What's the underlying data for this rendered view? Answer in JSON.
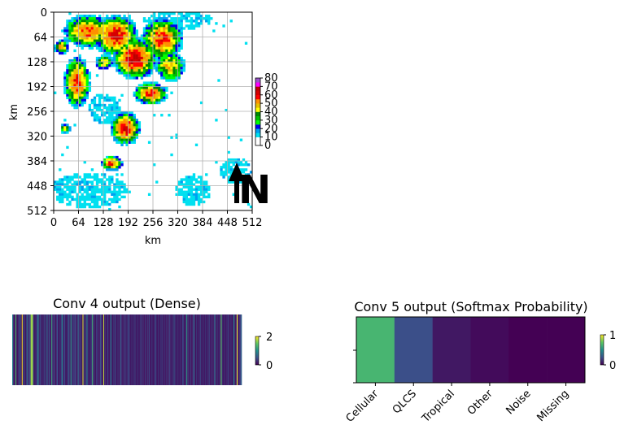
{
  "chart_data": [
    {
      "type": "heatmap",
      "panel": "radar",
      "title": "",
      "xlabel": "km",
      "ylabel": "km",
      "xlim": [
        0,
        512
      ],
      "ylim": [
        512,
        0
      ],
      "x_ticks": [
        "0",
        "64",
        "128",
        "192",
        "256",
        "320",
        "384",
        "448",
        "512"
      ],
      "y_ticks": [
        "0",
        "64",
        "128",
        "192",
        "256",
        "320",
        "384",
        "448",
        "512"
      ],
      "grid": true,
      "colorbar": {
        "ticks": [
          "80",
          "70",
          "60",
          "50",
          "40",
          "30",
          "20",
          "10",
          "0"
        ],
        "levels": [
          0,
          10,
          15,
          20,
          25,
          30,
          35,
          40,
          45,
          50,
          55,
          60,
          65,
          70,
          75,
          80
        ],
        "colors": [
          "#ffffff",
          "#00e0f0",
          "#00a0f0",
          "#0000f0",
          "#00ff00",
          "#00c000",
          "#008800",
          "#ffff00",
          "#e8c000",
          "#ff9000",
          "#ff0000",
          "#d40000",
          "#bc0000",
          "#ff00ff",
          "#9955c9",
          "#000000"
        ]
      },
      "annotation": "N",
      "blobs": [
        {
          "cx": 30,
          "cy": 300,
          "rx": 14,
          "ry": 12,
          "peak": 40
        },
        {
          "cx": 60,
          "cy": 180,
          "rx": 35,
          "ry": 70,
          "peak": 52
        },
        {
          "cx": 90,
          "cy": 50,
          "rx": 70,
          "ry": 45,
          "peak": 48
        },
        {
          "cx": 160,
          "cy": 60,
          "rx": 60,
          "ry": 55,
          "peak": 55
        },
        {
          "cx": 210,
          "cy": 120,
          "rx": 60,
          "ry": 55,
          "peak": 58
        },
        {
          "cx": 280,
          "cy": 70,
          "rx": 55,
          "ry": 60,
          "peak": 50
        },
        {
          "cx": 300,
          "cy": 140,
          "rx": 40,
          "ry": 40,
          "peak": 42
        },
        {
          "cx": 250,
          "cy": 210,
          "rx": 45,
          "ry": 30,
          "peak": 52
        },
        {
          "cx": 185,
          "cy": 300,
          "rx": 40,
          "ry": 45,
          "peak": 55
        },
        {
          "cx": 150,
          "cy": 390,
          "rx": 30,
          "ry": 20,
          "peak": 50
        },
        {
          "cx": 20,
          "cy": 90,
          "rx": 20,
          "ry": 20,
          "peak": 42
        },
        {
          "cx": 130,
          "cy": 130,
          "rx": 25,
          "ry": 20,
          "peak": 38
        }
      ],
      "light_regions": [
        {
          "cx": 90,
          "cy": 460,
          "rx": 100,
          "ry": 45
        },
        {
          "cx": 360,
          "cy": 460,
          "rx": 45,
          "ry": 40
        },
        {
          "cx": 470,
          "cy": 410,
          "rx": 40,
          "ry": 35
        },
        {
          "cx": 320,
          "cy": 20,
          "rx": 90,
          "ry": 25
        },
        {
          "cx": 130,
          "cy": 250,
          "rx": 40,
          "ry": 40
        }
      ]
    },
    {
      "type": "heatmap",
      "panel": "conv4",
      "title": "Conv 4 output (Dense)",
      "colorbar": {
        "ticks": [
          "2",
          "0"
        ],
        "vmin": 0,
        "vmax": 2
      },
      "values": [
        0.9,
        0.3,
        0.2,
        0.1,
        1.4,
        0.2,
        0.1,
        0.3,
        0.2,
        0.6,
        0.3,
        0.1,
        2.0,
        0.2,
        0.4,
        0.3,
        0.1,
        0.2,
        0.8,
        0.3,
        0.2,
        0.5,
        0.3,
        1.6,
        1.8,
        1.6,
        0.3,
        0.2,
        0.1,
        0.3,
        0.2,
        0.6,
        0.9,
        0.3,
        0.2,
        0.5,
        0.2,
        0.1,
        0.3,
        0.2,
        0.4,
        0.3,
        0.1,
        0.7,
        0.3,
        0.2,
        0.5,
        0.2,
        0.1,
        1.2,
        0.3,
        0.2,
        0.4,
        0.2,
        0.1,
        0.3,
        0.5,
        0.2,
        0.1,
        0.3,
        0.2,
        0.4,
        0.9,
        0.3,
        0.2,
        0.5,
        0.2,
        0.1,
        0.3,
        0.2,
        0.6,
        0.3,
        0.2,
        1.1,
        0.3,
        0.2,
        0.4,
        0.2,
        0.5,
        0.3,
        0.1,
        0.2,
        0.7,
        0.3,
        0.2,
        0.4,
        0.2,
        0.1,
        1.9,
        0.3,
        0.2,
        0.4,
        0.2,
        0.9,
        0.3,
        0.2,
        0.1,
        0.3,
        0.2,
        0.4,
        1.3,
        0.2,
        0.3,
        0.2,
        0.1,
        0.4,
        0.2,
        0.3,
        0.1,
        0.2,
        0.5,
        0.3,
        0.2,
        0.1,
        1.8,
        0.2,
        0.3,
        0.1,
        0.2,
        0.4,
        0.2,
        0.1,
        0.3,
        0.8,
        0.2,
        0.1,
        0.3,
        0.2,
        0.4,
        0.3,
        0.1,
        0.2,
        0.3,
        0.1,
        0.2,
        0.6,
        0.3,
        0.2,
        0.1,
        0.3,
        0.2,
        0.4,
        0.1,
        0.3,
        0.2,
        0.5,
        0.3,
        0.2,
        0.1,
        0.3,
        0.2,
        0.1,
        0.4,
        0.2,
        0.3,
        0.1,
        0.2,
        0.3,
        0.1,
        0.2,
        0.3,
        0.4,
        0.1,
        0.3,
        0.2,
        0.1,
        0.3,
        0.2,
        0.1,
        0.3,
        0.2,
        0.4,
        0.2,
        0.1,
        0.3,
        0.2,
        0.1,
        0.3,
        0.2,
        0.5,
        0.2,
        0.1,
        0.3,
        0.2,
        0.1,
        0.3,
        0.2,
        0.4,
        0.1,
        0.2,
        0.3,
        0.1,
        0.2,
        0.3,
        0.1,
        0.2,
        0.4,
        0.3,
        0.1,
        0.2,
        0.3,
        0.1,
        0.6,
        0.2,
        0.3,
        0.1,
        0.2,
        0.3,
        0.1,
        0.2,
        0.3,
        0.1,
        0.2,
        0.5,
        0.3,
        0.1,
        0.2,
        0.3,
        1.1,
        0.2,
        0.3,
        0.1,
        0.2,
        0.3,
        0.1,
        0.2,
        0.3,
        0.7,
        0.2,
        0.1,
        0.3,
        0.2,
        0.1,
        0.3,
        0.2,
        0.4,
        0.2,
        0.1,
        0.3,
        0.2,
        0.1,
        0.3,
        0.2,
        0.1,
        0.3,
        0.2,
        0.4,
        0.2,
        0.1,
        0.3,
        0.2,
        0.1,
        0.3,
        0.8,
        0.2,
        0.1,
        0.3,
        0.2,
        0.1,
        0.3,
        0.2,
        1.5,
        0.3,
        0.2,
        0.1,
        0.3,
        0.2,
        0.1,
        0.3,
        0.2,
        0.4,
        0.2,
        0.1,
        0.3,
        0.2,
        0.1,
        0.3,
        0.9,
        0.2,
        0.1,
        0.3,
        2.0,
        0.2,
        0.1,
        0.3,
        0.4,
        0.6
      ]
    },
    {
      "type": "heatmap",
      "panel": "conv5",
      "title": "Conv 5 output (Softmax Probability)",
      "categories": [
        "Cellular",
        "QLCS",
        "Tropical",
        "Other",
        "Noise",
        "Missing"
      ],
      "values": [
        0.66,
        0.24,
        0.07,
        0.03,
        0.0,
        0.0
      ],
      "colorbar": {
        "ticks": [
          "1",
          "0"
        ],
        "vmin": 0,
        "vmax": 1
      }
    }
  ]
}
